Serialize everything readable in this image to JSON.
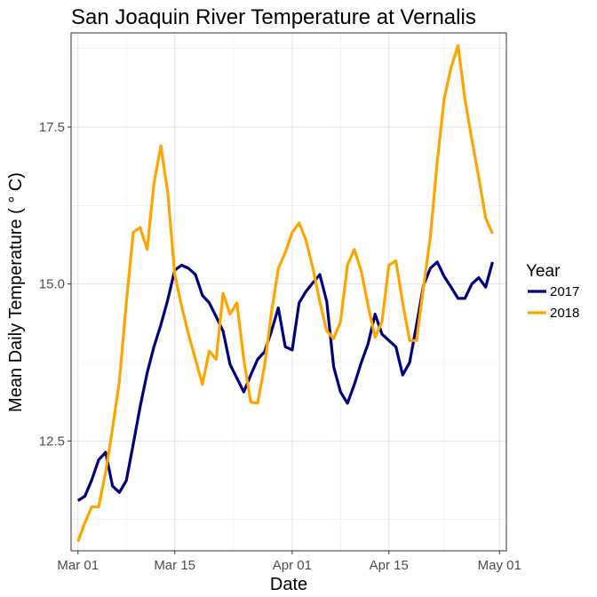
{
  "chart_data": {
    "type": "line",
    "title": "San Joaquin River Temperature at Vernalis",
    "xlabel": "Date",
    "ylabel": "Mean Daily Temperature ( ° C)",
    "ylim": [
      10.75,
      19.0
    ],
    "y_ticks": [
      12.5,
      15.0,
      17.5
    ],
    "y_tick_labels": [
      "12.5",
      "15.0",
      "17.5"
    ],
    "xlim": [
      "2018-02-28",
      "2018-05-02"
    ],
    "x_ticks": [
      "2018-03-01",
      "2018-03-15",
      "2018-04-01",
      "2018-04-15",
      "2018-05-01"
    ],
    "x_tick_labels": [
      "Mar 01",
      "Mar 15",
      "Apr 01",
      "Apr 15",
      "May 01"
    ],
    "grid": true,
    "legend": {
      "title": "Year",
      "position": "right"
    },
    "series": [
      {
        "name": "2017",
        "color": "#00007F",
        "x": [
          "2018-03-01",
          "2018-03-02",
          "2018-03-03",
          "2018-03-04",
          "2018-03-05",
          "2018-03-06",
          "2018-03-07",
          "2018-03-08",
          "2018-03-09",
          "2018-03-10",
          "2018-03-11",
          "2018-03-12",
          "2018-03-13",
          "2018-03-14",
          "2018-03-15",
          "2018-03-16",
          "2018-03-17",
          "2018-03-18",
          "2018-03-19",
          "2018-03-20",
          "2018-03-21",
          "2018-03-22",
          "2018-03-23",
          "2018-03-24",
          "2018-03-25",
          "2018-03-26",
          "2018-03-27",
          "2018-03-28",
          "2018-03-29",
          "2018-03-30",
          "2018-03-31",
          "2018-04-01",
          "2018-04-02",
          "2018-04-03",
          "2018-04-04",
          "2018-04-05",
          "2018-04-06",
          "2018-04-07",
          "2018-04-08",
          "2018-04-09",
          "2018-04-10",
          "2018-04-11",
          "2018-04-12",
          "2018-04-13",
          "2018-04-14",
          "2018-04-15",
          "2018-04-16",
          "2018-04-17",
          "2018-04-18",
          "2018-04-19",
          "2018-04-20",
          "2018-04-21",
          "2018-04-22",
          "2018-04-23",
          "2018-04-24",
          "2018-04-25",
          "2018-04-26",
          "2018-04-27",
          "2018-04-28",
          "2018-04-29",
          "2018-04-30"
        ],
        "values": [
          11.55,
          11.62,
          11.88,
          12.2,
          12.32,
          11.78,
          11.68,
          11.87,
          12.45,
          13.05,
          13.58,
          14.0,
          14.35,
          14.75,
          15.22,
          15.3,
          15.25,
          15.15,
          14.82,
          14.7,
          14.48,
          14.25,
          13.72,
          13.5,
          13.28,
          13.55,
          13.8,
          13.92,
          14.25,
          14.62,
          14.0,
          13.95,
          14.7,
          14.88,
          15.02,
          15.15,
          14.72,
          13.68,
          13.28,
          13.1,
          13.4,
          13.75,
          14.05,
          14.52,
          14.2,
          14.1,
          14.0,
          13.55,
          13.75,
          14.35,
          14.98,
          15.25,
          15.35,
          15.12,
          14.95,
          14.77,
          14.77,
          15.0,
          15.1,
          14.95,
          15.35
        ]
      },
      {
        "name": "2018",
        "color": "#FFA500",
        "x": [
          "2018-03-01",
          "2018-03-02",
          "2018-03-03",
          "2018-03-04",
          "2018-03-05",
          "2018-03-06",
          "2018-03-07",
          "2018-03-08",
          "2018-03-09",
          "2018-03-10",
          "2018-03-11",
          "2018-03-12",
          "2018-03-13",
          "2018-03-14",
          "2018-03-15",
          "2018-03-16",
          "2018-03-17",
          "2018-03-18",
          "2018-03-19",
          "2018-03-20",
          "2018-03-21",
          "2018-03-22",
          "2018-03-23",
          "2018-03-24",
          "2018-03-25",
          "2018-03-26",
          "2018-03-27",
          "2018-03-28",
          "2018-03-29",
          "2018-03-30",
          "2018-03-31",
          "2018-04-01",
          "2018-04-02",
          "2018-04-03",
          "2018-04-04",
          "2018-04-05",
          "2018-04-06",
          "2018-04-07",
          "2018-04-08",
          "2018-04-09",
          "2018-04-10",
          "2018-04-11",
          "2018-04-12",
          "2018-04-13",
          "2018-04-14",
          "2018-04-15",
          "2018-04-16",
          "2018-04-17",
          "2018-04-18",
          "2018-04-19",
          "2018-04-20",
          "2018-04-21",
          "2018-04-22",
          "2018-04-23",
          "2018-04-24",
          "2018-04-25",
          "2018-04-26",
          "2018-04-27",
          "2018-04-28",
          "2018-04-29",
          "2018-04-30"
        ],
        "values": [
          10.9,
          11.2,
          11.45,
          11.45,
          12.0,
          12.7,
          13.45,
          14.7,
          15.82,
          15.9,
          15.55,
          16.6,
          17.2,
          16.45,
          15.15,
          14.65,
          14.2,
          13.8,
          13.4,
          13.93,
          13.8,
          14.85,
          14.52,
          14.7,
          13.8,
          13.12,
          13.1,
          13.7,
          14.55,
          15.25,
          15.5,
          15.82,
          15.97,
          15.7,
          15.25,
          14.72,
          14.25,
          14.13,
          14.4,
          15.3,
          15.55,
          15.2,
          14.65,
          14.15,
          14.4,
          15.3,
          15.37,
          14.7,
          14.1,
          14.1,
          14.95,
          15.75,
          16.95,
          17.95,
          18.45,
          18.8,
          17.95,
          17.3,
          16.7,
          16.05,
          15.8
        ]
      }
    ]
  }
}
